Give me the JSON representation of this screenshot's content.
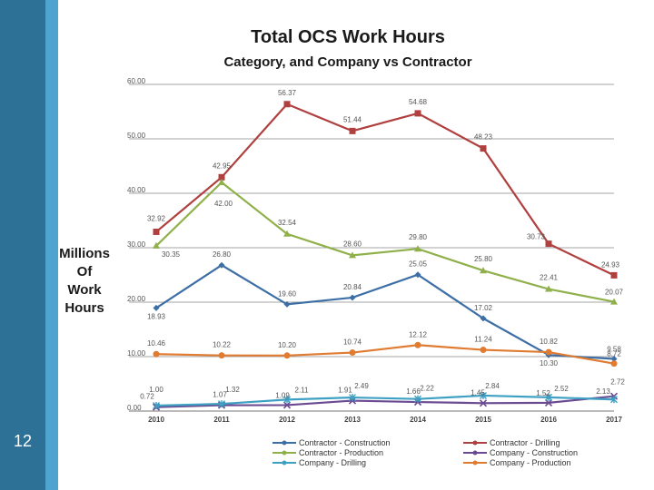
{
  "slide": {
    "number": "12"
  },
  "colors": {
    "sidebar": "#2e7196",
    "sidebar_stripe": "#4fa3cf",
    "contractor_construction": "#3d6fa6",
    "contractor_drilling": "#b0403f",
    "contractor_production": "#8fb04a",
    "company_construction": "#6a4a91",
    "company_drilling": "#3ea0c2",
    "company_production": "#e07b32"
  },
  "ylabel_lines": [
    "Millions",
    "Of",
    "Work",
    "Hours"
  ],
  "chart_data": {
    "type": "line",
    "title": "Total OCS Work Hours",
    "subtitle": "Category, and Company vs Contractor",
    "xlabel": "",
    "ylabel": "Millions Of Work Hours",
    "x": [
      "2010",
      "2011",
      "2012",
      "2013",
      "2014",
      "2015",
      "2016",
      "2017"
    ],
    "ylim": [
      0,
      60
    ],
    "yticks": [
      "0.00",
      "10.00",
      "20.00",
      "30.00",
      "40.00",
      "50.00",
      "60.00"
    ],
    "grid": true,
    "legend_position": "bottom",
    "series": [
      {
        "name": "Contractor - Construction",
        "key": "contractor_construction",
        "marker": "diamond",
        "values": [
          18.93,
          26.8,
          19.6,
          20.84,
          25.05,
          17.02,
          10.3,
          9.58
        ],
        "labels": [
          "18.93",
          "26.80",
          "19.60",
          "20.84",
          "25.05",
          "17.02",
          "10.30",
          "9.58"
        ]
      },
      {
        "name": "Contractor - Drilling",
        "key": "contractor_drilling",
        "marker": "square",
        "values": [
          32.92,
          42.95,
          56.37,
          51.44,
          54.68,
          48.23,
          30.73,
          24.93
        ],
        "labels": [
          "32.92",
          "42.95",
          "56.37",
          "51.44",
          "54.68",
          "48.23",
          "30.73",
          "24.93"
        ]
      },
      {
        "name": "Contractor - Production",
        "key": "contractor_production",
        "marker": "triangle",
        "values": [
          30.35,
          42.0,
          32.54,
          28.6,
          29.8,
          25.8,
          22.41,
          20.07
        ],
        "labels": [
          "30.35",
          "42.00",
          "32.54",
          "28.60",
          "29.80",
          "25.80",
          "22.41",
          "20.07"
        ]
      },
      {
        "name": "Company - Construction",
        "key": "company_construction",
        "marker": "x",
        "values": [
          0.72,
          1.07,
          1.09,
          1.91,
          1.66,
          1.45,
          1.52,
          2.72
        ],
        "labels": [
          "0.72",
          "1.07",
          "1.09",
          "1.91",
          "1.66",
          "1.45",
          "1.52",
          "2.72"
        ]
      },
      {
        "name": "Company - Drilling",
        "key": "company_drilling",
        "marker": "star",
        "values": [
          1.0,
          1.32,
          2.11,
          2.49,
          2.22,
          2.84,
          2.52,
          2.13
        ],
        "labels": [
          "1.00",
          "1.32",
          "2.11",
          "2.49",
          "2.22",
          "2.84",
          "2.52",
          "2.13"
        ]
      },
      {
        "name": "Company - Production",
        "key": "company_production",
        "marker": "circle",
        "values": [
          10.46,
          10.22,
          10.2,
          10.74,
          12.12,
          11.24,
          10.82,
          8.72
        ],
        "labels": [
          "10.46",
          "10.22",
          "10.20",
          "10.74",
          "12.12",
          "11.24",
          "10.82",
          "8.72"
        ]
      }
    ]
  }
}
